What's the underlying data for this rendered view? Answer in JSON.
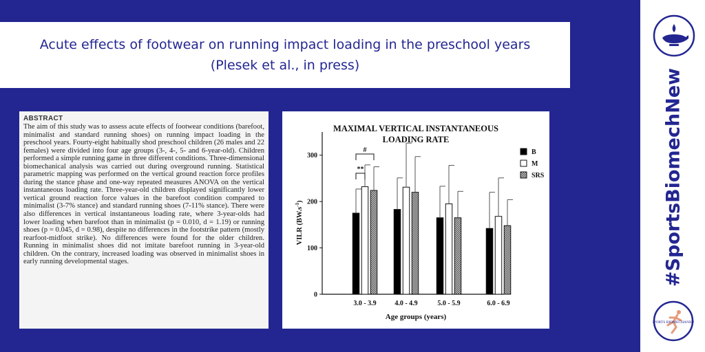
{
  "header": {
    "title_line1": "Acute effects of footwear on running impact loading in the preschool years",
    "title_line2": "(Plesek et al., in press)"
  },
  "abstract": {
    "heading": "ABSTRACT",
    "text": "The aim of this study was to assess acute effects of footwear conditions (barefoot, minimalist and standard running shoes) on running impact loading in the preschool years. Fourty-eight habitually shod preschool children (26 males and 22 females) were divided into four age groups (3-, 4-, 5- and 6-year-old). Children performed a simple running game in three different conditions. Three-dimensional biomechanical analysis was carried out during overground running. Statistical parametric mapping was performed on the vertical ground reaction force profiles during the stance phase and one-way repeated measures ANOVA on the vertical instantaneous loading rate. Three-year-old children displayed significantly lower vertical ground reaction force values in the barefoot condition compared to minimalist (3-7% stance) and standard running shoes (7-11% stance). There were also differences in vertical instantaneous loading rate, where 3-year-olds had lower loading when barefoot than in minimalist (p = 0.010, d = 1.19) or running shoes (p = 0.045, d = 0.98), despite no differences in the footstrike pattern (mostly rearfoot-midfoot strike). No differences were found for the older children. Running in minimalist shoes did not imitate barefoot running in 3-year-old children. On the contrary, increased loading was observed in minimalist shoes in early running developmental stages."
  },
  "chart_data": {
    "type": "bar",
    "title_line1": "MAXIMAL VERTICAL INSTANTANEOUS",
    "title_line2": "LOADING RATE",
    "xlabel": "Age groups (years)",
    "ylabel": "VILR (BW.s",
    "ylabel_sup": "-1",
    "ylabel_end": ")",
    "ylim": [
      0,
      350
    ],
    "yticks": [
      0,
      100,
      200,
      300
    ],
    "categories": [
      "3.0 - 3.9",
      "4.0 - 4.9",
      "5.0 - 5.9",
      "6.0 - 6.9"
    ],
    "series": [
      {
        "name": "B",
        "values": [
          175,
          183,
          165,
          142
        ],
        "errors": [
          52,
          68,
          68,
          78
        ]
      },
      {
        "name": "M",
        "values": [
          232,
          231,
          195,
          168
        ],
        "errors": [
          47,
          95,
          83,
          83
        ]
      },
      {
        "name": "SRS",
        "values": [
          224,
          220,
          165,
          148
        ],
        "errors": [
          51,
          77,
          57,
          56
        ]
      }
    ],
    "annotations": [
      {
        "text": "#",
        "between": [
          "B",
          "SRS"
        ],
        "category": "3.0 - 3.9"
      },
      {
        "text": "**",
        "between": [
          "B",
          "M"
        ],
        "category": "3.0 - 3.9"
      }
    ],
    "legend_position": "right",
    "grid": false,
    "colors": {
      "B": "#000000",
      "M": "#ffffff",
      "SRS": "#999999"
    }
  },
  "sidebar": {
    "hashtag": "#SportsBiomechNew",
    "logo_text": "SPORTS BIOMECHANICS"
  },
  "colors": {
    "navy": "#232691",
    "white": "#ffffff"
  }
}
